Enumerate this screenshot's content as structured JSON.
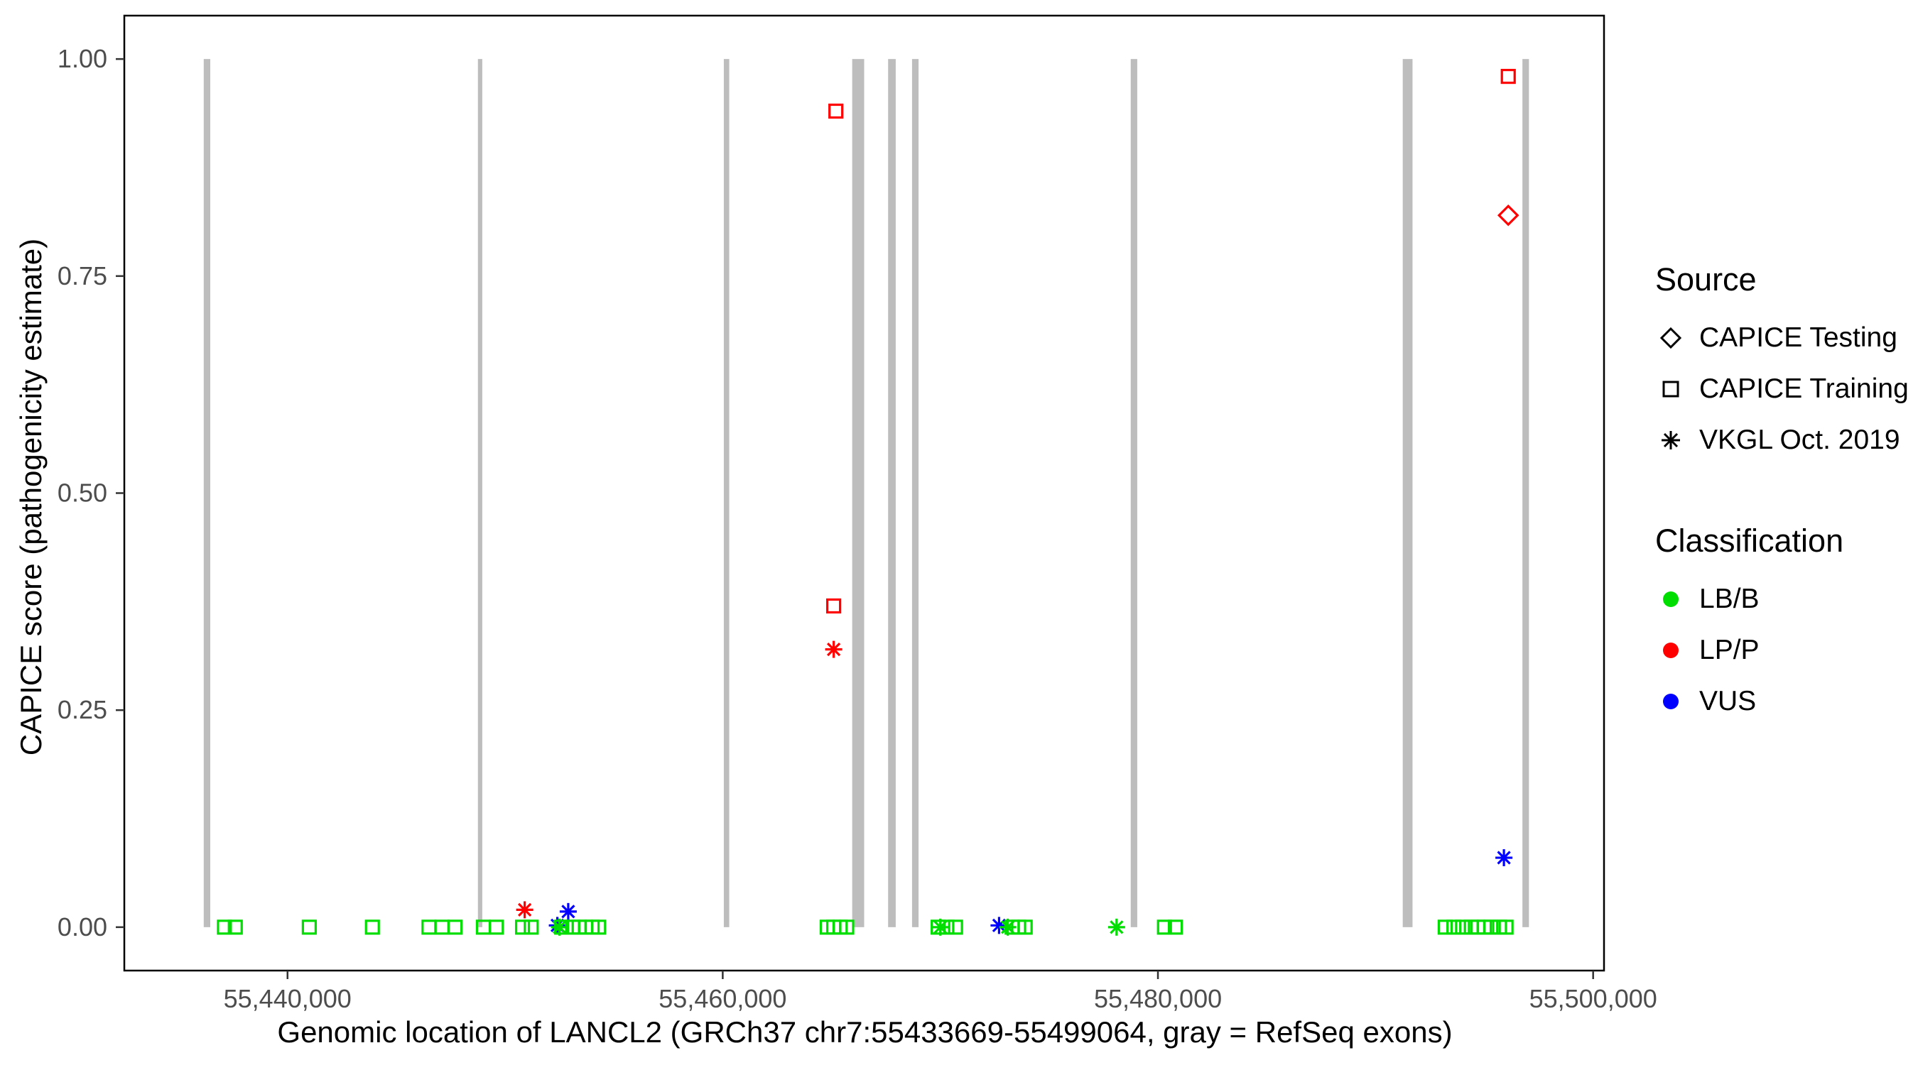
{
  "chart_data": {
    "type": "scatter",
    "xlabel": "Genomic location of LANCL2 (GRCh37 chr7:55433669-55499064, gray = RefSeq exons)",
    "ylabel": "CAPICE score (pathogenicity estimate)",
    "xlim": [
      55432500,
      55500500
    ],
    "ylim": [
      -0.05,
      1.05
    ],
    "grid": "off",
    "legend_position": "right",
    "x_ticks": [
      {
        "value": 55440000,
        "label": "55,440,000"
      },
      {
        "value": 55460000,
        "label": "55,460,000"
      },
      {
        "value": 55480000,
        "label": "55,480,000"
      },
      {
        "value": 55500000,
        "label": "55,500,000"
      }
    ],
    "y_ticks": [
      {
        "value": 0.0,
        "label": "0.00"
      },
      {
        "value": 0.25,
        "label": "0.25"
      },
      {
        "value": 0.5,
        "label": "0.50"
      },
      {
        "value": 0.75,
        "label": "0.75"
      },
      {
        "value": 1.0,
        "label": "1.00"
      }
    ],
    "exon_color": "#BDBDBD",
    "exons_gray": [
      {
        "start": 55436150,
        "end": 55436450
      },
      {
        "start": 55448750,
        "end": 55448950
      },
      {
        "start": 55460050,
        "end": 55460300
      },
      {
        "start": 55465950,
        "end": 55466500
      },
      {
        "start": 55467600,
        "end": 55467950
      },
      {
        "start": 55468700,
        "end": 55469000
      },
      {
        "start": 55478750,
        "end": 55479050
      },
      {
        "start": 55491250,
        "end": 55491700
      },
      {
        "start": 55496750,
        "end": 55497050
      }
    ],
    "classification_colors": {
      "LB/B": "#00DD00",
      "LP/P": "#FF0000",
      "VUS": "#0000FF"
    },
    "source_shapes": {
      "CAPICE Testing": "diamond",
      "CAPICE Training": "square",
      "VKGL Oct. 2019": "asterisk"
    },
    "points": [
      {
        "x": 55465200,
        "y": 0.94,
        "source": "CAPICE Training",
        "classification": "LP/P"
      },
      {
        "x": 55465100,
        "y": 0.37,
        "source": "CAPICE Training",
        "classification": "LP/P"
      },
      {
        "x": 55465100,
        "y": 0.32,
        "source": "VKGL Oct. 2019",
        "classification": "LP/P"
      },
      {
        "x": 55496100,
        "y": 0.98,
        "source": "CAPICE Training",
        "classification": "LP/P"
      },
      {
        "x": 55496100,
        "y": 0.82,
        "source": "CAPICE Testing",
        "classification": "LP/P"
      },
      {
        "x": 55450900,
        "y": 0.02,
        "source": "VKGL Oct. 2019",
        "classification": "LP/P"
      },
      {
        "x": 55495900,
        "y": 0.08,
        "source": "VKGL Oct. 2019",
        "classification": "VUS"
      },
      {
        "x": 55452900,
        "y": 0.018,
        "source": "VKGL Oct. 2019",
        "classification": "VUS"
      },
      {
        "x": 55452400,
        "y": 0.002,
        "source": "VKGL Oct. 2019",
        "classification": "VUS"
      },
      {
        "x": 55472700,
        "y": 0.002,
        "source": "VKGL Oct. 2019",
        "classification": "VUS"
      },
      {
        "x": 55437100,
        "y": 0.0,
        "source": "CAPICE Training",
        "classification": "LB/B"
      },
      {
        "x": 55437600,
        "y": 0.0,
        "source": "CAPICE Training",
        "classification": "LB/B"
      },
      {
        "x": 55441000,
        "y": 0.0,
        "source": "CAPICE Training",
        "classification": "LB/B"
      },
      {
        "x": 55443900,
        "y": 0.0,
        "source": "CAPICE Training",
        "classification": "LB/B"
      },
      {
        "x": 55446500,
        "y": 0.0,
        "source": "CAPICE Training",
        "classification": "LB/B"
      },
      {
        "x": 55447100,
        "y": 0.0,
        "source": "CAPICE Training",
        "classification": "LB/B"
      },
      {
        "x": 55447700,
        "y": 0.0,
        "source": "CAPICE Training",
        "classification": "LB/B"
      },
      {
        "x": 55449000,
        "y": 0.0,
        "source": "CAPICE Training",
        "classification": "LB/B"
      },
      {
        "x": 55449600,
        "y": 0.0,
        "source": "CAPICE Training",
        "classification": "LB/B"
      },
      {
        "x": 55450800,
        "y": 0.0,
        "source": "CAPICE Training",
        "classification": "LB/B"
      },
      {
        "x": 55451200,
        "y": 0.0,
        "source": "CAPICE Training",
        "classification": "LB/B"
      },
      {
        "x": 55452600,
        "y": 0.0,
        "source": "CAPICE Training",
        "classification": "LB/B"
      },
      {
        "x": 55453100,
        "y": 0.0,
        "source": "CAPICE Training",
        "classification": "LB/B"
      },
      {
        "x": 55453400,
        "y": 0.0,
        "source": "CAPICE Training",
        "classification": "LB/B"
      },
      {
        "x": 55453700,
        "y": 0.0,
        "source": "CAPICE Training",
        "classification": "LB/B"
      },
      {
        "x": 55454000,
        "y": 0.0,
        "source": "CAPICE Training",
        "classification": "LB/B"
      },
      {
        "x": 55454300,
        "y": 0.0,
        "source": "CAPICE Training",
        "classification": "LB/B"
      },
      {
        "x": 55464800,
        "y": 0.0,
        "source": "CAPICE Training",
        "classification": "LB/B"
      },
      {
        "x": 55465100,
        "y": 0.0,
        "source": "CAPICE Training",
        "classification": "LB/B"
      },
      {
        "x": 55465400,
        "y": 0.0,
        "source": "CAPICE Training",
        "classification": "LB/B"
      },
      {
        "x": 55465700,
        "y": 0.0,
        "source": "CAPICE Training",
        "classification": "LB/B"
      },
      {
        "x": 55469900,
        "y": 0.0,
        "source": "CAPICE Training",
        "classification": "LB/B"
      },
      {
        "x": 55470300,
        "y": 0.0,
        "source": "CAPICE Training",
        "classification": "LB/B"
      },
      {
        "x": 55470700,
        "y": 0.0,
        "source": "CAPICE Training",
        "classification": "LB/B"
      },
      {
        "x": 55473300,
        "y": 0.0,
        "source": "CAPICE Training",
        "classification": "LB/B"
      },
      {
        "x": 55473600,
        "y": 0.0,
        "source": "CAPICE Training",
        "classification": "LB/B"
      },
      {
        "x": 55473900,
        "y": 0.0,
        "source": "CAPICE Training",
        "classification": "LB/B"
      },
      {
        "x": 55480300,
        "y": 0.0,
        "source": "CAPICE Training",
        "classification": "LB/B"
      },
      {
        "x": 55480800,
        "y": 0.0,
        "source": "CAPICE Training",
        "classification": "LB/B"
      },
      {
        "x": 55493200,
        "y": 0.0,
        "source": "CAPICE Training",
        "classification": "LB/B"
      },
      {
        "x": 55493600,
        "y": 0.0,
        "source": "CAPICE Training",
        "classification": "LB/B"
      },
      {
        "x": 55494000,
        "y": 0.0,
        "source": "CAPICE Training",
        "classification": "LB/B"
      },
      {
        "x": 55494400,
        "y": 0.0,
        "source": "CAPICE Training",
        "classification": "LB/B"
      },
      {
        "x": 55494700,
        "y": 0.0,
        "source": "CAPICE Training",
        "classification": "LB/B"
      },
      {
        "x": 55495000,
        "y": 0.0,
        "source": "CAPICE Training",
        "classification": "LB/B"
      },
      {
        "x": 55495300,
        "y": 0.0,
        "source": "CAPICE Training",
        "classification": "LB/B"
      },
      {
        "x": 55495700,
        "y": 0.0,
        "source": "CAPICE Training",
        "classification": "LB/B"
      },
      {
        "x": 55496000,
        "y": 0.0,
        "source": "CAPICE Training",
        "classification": "LB/B"
      },
      {
        "x": 55452500,
        "y": 0.0,
        "source": "VKGL Oct. 2019",
        "classification": "LB/B"
      },
      {
        "x": 55470000,
        "y": 0.0,
        "source": "VKGL Oct. 2019",
        "classification": "LB/B"
      },
      {
        "x": 55473100,
        "y": 0.0,
        "source": "VKGL Oct. 2019",
        "classification": "LB/B"
      },
      {
        "x": 55478100,
        "y": 0.0,
        "source": "VKGL Oct. 2019",
        "classification": "LB/B"
      }
    ]
  },
  "legend": {
    "source_title": "Source",
    "source_items": [
      {
        "label": "CAPICE Testing",
        "shape": "diamond"
      },
      {
        "label": "CAPICE Training",
        "shape": "square"
      },
      {
        "label": "VKGL Oct. 2019",
        "shape": "asterisk"
      }
    ],
    "classification_title": "Classification",
    "classification_items": [
      {
        "label": "LB/B",
        "color": "#00DD00"
      },
      {
        "label": "LP/P",
        "color": "#FF0000"
      },
      {
        "label": "VUS",
        "color": "#0000FF"
      }
    ]
  }
}
